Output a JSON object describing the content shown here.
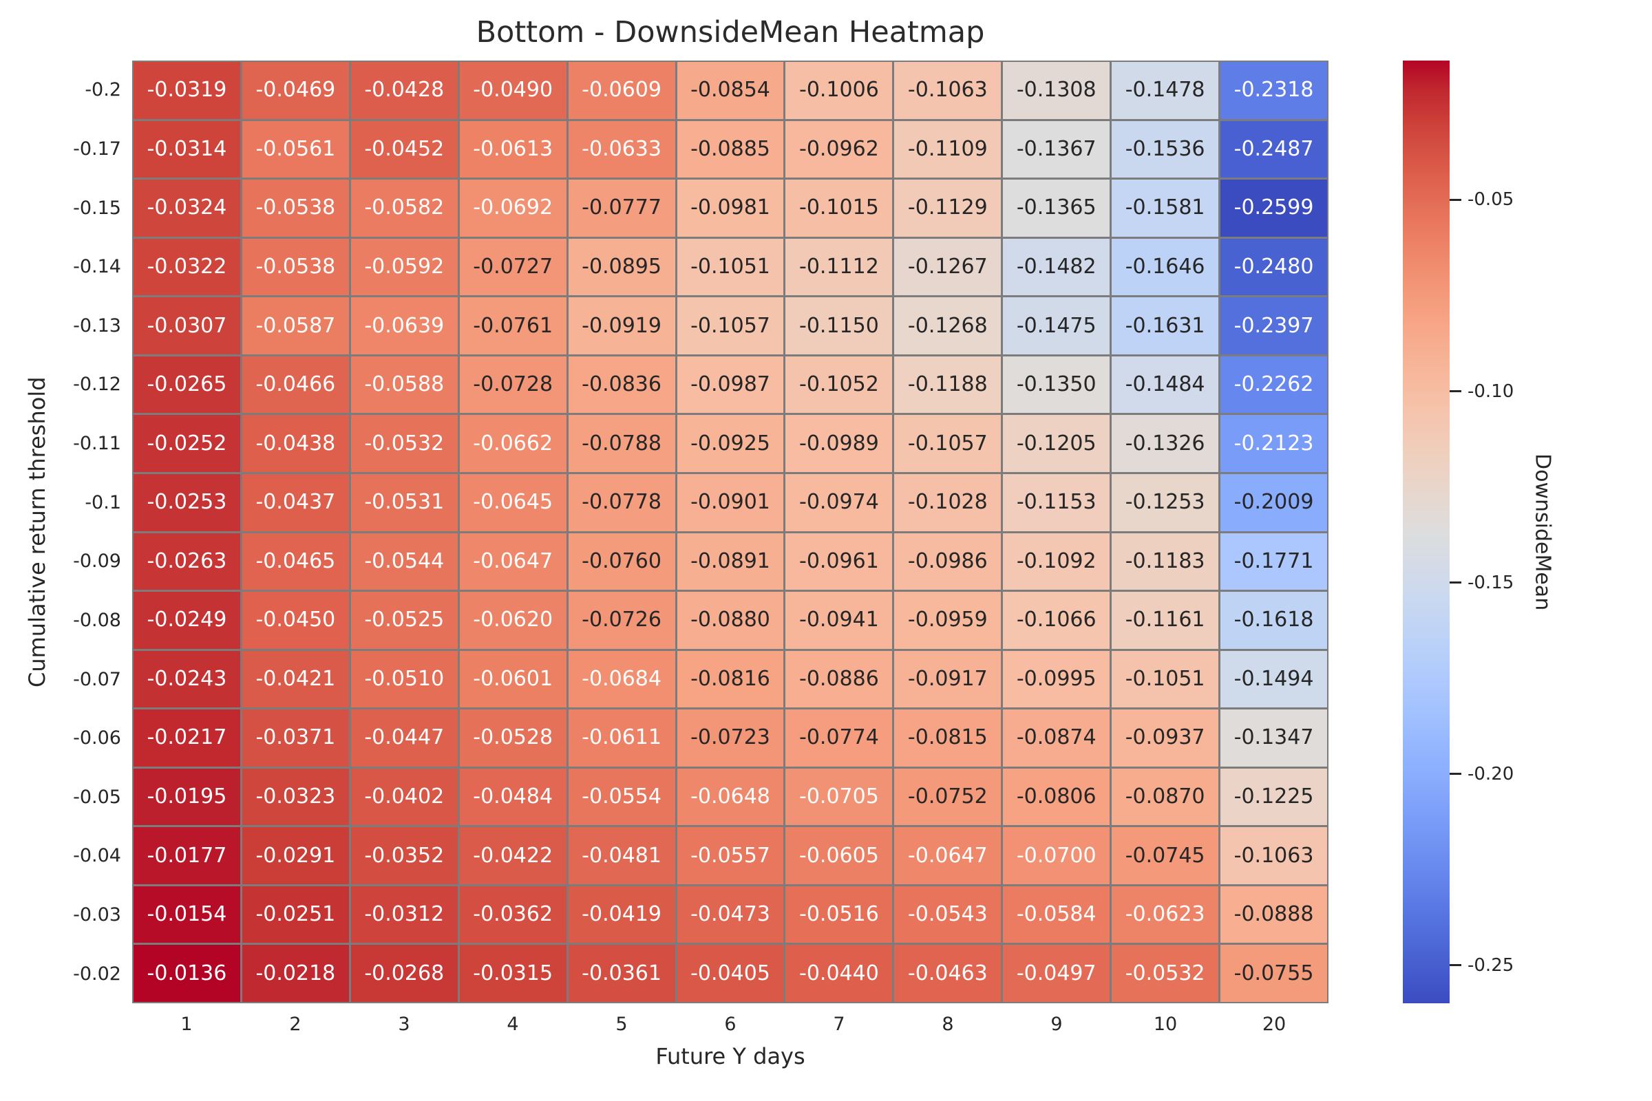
{
  "chart_data": {
    "type": "heatmap",
    "title": "Bottom - DownsideMean Heatmap",
    "xlabel": "Future Y days",
    "ylabel": "Cumulative return threshold",
    "x_categories": [
      "1",
      "2",
      "3",
      "4",
      "5",
      "6",
      "7",
      "8",
      "9",
      "10",
      "20"
    ],
    "y_categories": [
      "-0.2",
      "-0.17",
      "-0.15",
      "-0.14",
      "-0.13",
      "-0.12",
      "-0.11",
      "-0.1",
      "-0.09",
      "-0.08",
      "-0.07",
      "-0.06",
      "-0.05",
      "-0.04",
      "-0.03",
      "-0.02"
    ],
    "values": [
      [
        -0.0319,
        -0.0469,
        -0.0428,
        -0.049,
        -0.0609,
        -0.0854,
        -0.1006,
        -0.1063,
        -0.1308,
        -0.1478,
        -0.2318
      ],
      [
        -0.0314,
        -0.0561,
        -0.0452,
        -0.0613,
        -0.0633,
        -0.0885,
        -0.0962,
        -0.1109,
        -0.1367,
        -0.1536,
        -0.2487
      ],
      [
        -0.0324,
        -0.0538,
        -0.0582,
        -0.0692,
        -0.0777,
        -0.0981,
        -0.1015,
        -0.1129,
        -0.1365,
        -0.1581,
        -0.2599
      ],
      [
        -0.0322,
        -0.0538,
        -0.0592,
        -0.0727,
        -0.0895,
        -0.1051,
        -0.1112,
        -0.1267,
        -0.1482,
        -0.1646,
        -0.248
      ],
      [
        -0.0307,
        -0.0587,
        -0.0639,
        -0.0761,
        -0.0919,
        -0.1057,
        -0.115,
        -0.1268,
        -0.1475,
        -0.1631,
        -0.2397
      ],
      [
        -0.0265,
        -0.0466,
        -0.0588,
        -0.0728,
        -0.0836,
        -0.0987,
        -0.1052,
        -0.1188,
        -0.135,
        -0.1484,
        -0.2262
      ],
      [
        -0.0252,
        -0.0438,
        -0.0532,
        -0.0662,
        -0.0788,
        -0.0925,
        -0.0989,
        -0.1057,
        -0.1205,
        -0.1326,
        -0.2123
      ],
      [
        -0.0253,
        -0.0437,
        -0.0531,
        -0.0645,
        -0.0778,
        -0.0901,
        -0.0974,
        -0.1028,
        -0.1153,
        -0.1253,
        -0.2009
      ],
      [
        -0.0263,
        -0.0465,
        -0.0544,
        -0.0647,
        -0.076,
        -0.0891,
        -0.0961,
        -0.0986,
        -0.1092,
        -0.1183,
        -0.1771
      ],
      [
        -0.0249,
        -0.045,
        -0.0525,
        -0.062,
        -0.0726,
        -0.088,
        -0.0941,
        -0.0959,
        -0.1066,
        -0.1161,
        -0.1618
      ],
      [
        -0.0243,
        -0.0421,
        -0.051,
        -0.0601,
        -0.0684,
        -0.0816,
        -0.0886,
        -0.0917,
        -0.0995,
        -0.1051,
        -0.1494
      ],
      [
        -0.0217,
        -0.0371,
        -0.0447,
        -0.0528,
        -0.0611,
        -0.0723,
        -0.0774,
        -0.0815,
        -0.0874,
        -0.0937,
        -0.1347
      ],
      [
        -0.0195,
        -0.0323,
        -0.0402,
        -0.0484,
        -0.0554,
        -0.0648,
        -0.0705,
        -0.0752,
        -0.0806,
        -0.087,
        -0.1225
      ],
      [
        -0.0177,
        -0.0291,
        -0.0352,
        -0.0422,
        -0.0481,
        -0.0557,
        -0.0605,
        -0.0647,
        -0.07,
        -0.0745,
        -0.1063
      ],
      [
        -0.0154,
        -0.0251,
        -0.0312,
        -0.0362,
        -0.0419,
        -0.0473,
        -0.0516,
        -0.0543,
        -0.0584,
        -0.0623,
        -0.0888
      ],
      [
        -0.0136,
        -0.0218,
        -0.0268,
        -0.0315,
        -0.0361,
        -0.0405,
        -0.044,
        -0.0463,
        -0.0497,
        -0.0532,
        -0.0755
      ]
    ],
    "value_decimals": 4,
    "vmin": -0.2599,
    "vmax": -0.0136,
    "grid_on": true,
    "legend_position": "right-colorbar",
    "colorbar": {
      "label": "DownsideMean",
      "tick_labels": [
        "-0.05",
        "-0.10",
        "-0.15",
        "-0.20",
        "-0.25"
      ],
      "tick_values": [
        -0.05,
        -0.1,
        -0.15,
        -0.2,
        -0.25
      ]
    },
    "colormap": {
      "name": "coolwarm",
      "anchors": [
        "#3b4cc0",
        "#445acc",
        "#4d68d7",
        "#5775e1",
        "#6282ea",
        "#6c8ef1",
        "#779af7",
        "#82a5fb",
        "#8db0fe",
        "#98b9ff",
        "#a3c2ff",
        "#aec9fd",
        "#b8d0f9",
        "#c2d5f4",
        "#ccd9ee",
        "#d5dbe6",
        "#dddddd",
        "#e5d8d1",
        "#ecd3c5",
        "#f1ccb9",
        "#f5c4ad",
        "#f7bba0",
        "#f7b194",
        "#f7a687",
        "#f49a7b",
        "#f18d6f",
        "#ec7f63",
        "#e57058",
        "#de604d",
        "#d55042",
        "#cb3e38",
        "#c0282f",
        "#b40426"
      ]
    },
    "colors": {
      "annot_light": "#ffffff",
      "annot_dark": "#262626",
      "grid_line": "#7c7c7c",
      "tick_text": "#262626",
      "title_text": "#2b2b2b",
      "background": "#ffffff"
    }
  }
}
